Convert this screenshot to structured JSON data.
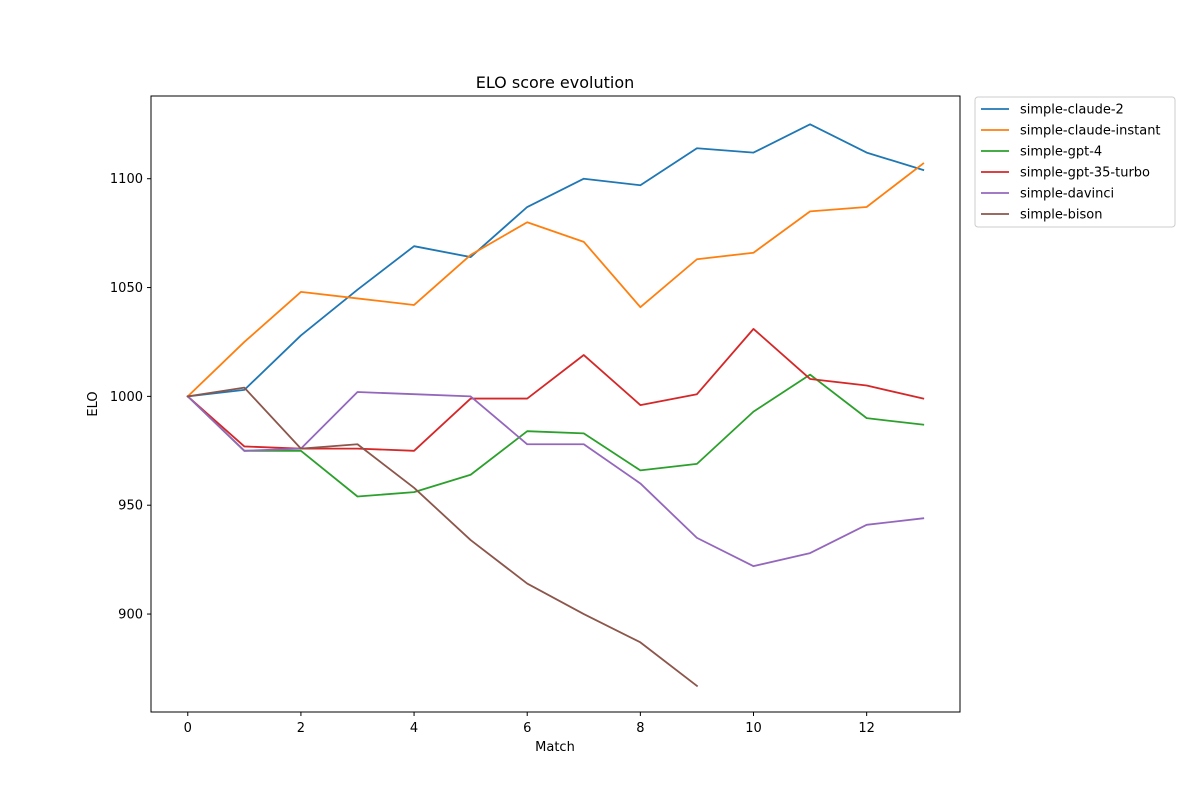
{
  "chart_data": {
    "type": "line",
    "title": "ELO score evolution",
    "xlabel": "Match",
    "ylabel": "ELO",
    "xlim": [
      -0.65,
      13.65
    ],
    "ylim": [
      855,
      1138
    ],
    "xticks": [
      0,
      2,
      4,
      6,
      8,
      10,
      12
    ],
    "yticks": [
      900,
      950,
      1000,
      1050,
      1100
    ],
    "grid": false,
    "legend_position": "outside-top-right",
    "series": [
      {
        "name": "simple-claude-2",
        "color": "#1f77b4",
        "x": [
          0,
          1,
          2,
          3,
          4,
          5,
          6,
          7,
          8,
          9,
          10,
          11,
          12,
          13
        ],
        "y": [
          1000,
          1003,
          1028,
          1049,
          1069,
          1064,
          1087,
          1100,
          1097,
          1114,
          1112,
          1125,
          1112,
          1104
        ]
      },
      {
        "name": "simple-claude-instant",
        "color": "#ff7f0e",
        "x": [
          0,
          1,
          2,
          3,
          4,
          5,
          6,
          7,
          8,
          9,
          10,
          11,
          12,
          13
        ],
        "y": [
          1000,
          1025,
          1048,
          1045,
          1042,
          1065,
          1080,
          1071,
          1041,
          1063,
          1066,
          1085,
          1087,
          1107
        ]
      },
      {
        "name": "simple-gpt-4",
        "color": "#2ca02c",
        "x": [
          0,
          1,
          2,
          3,
          4,
          5,
          6,
          7,
          8,
          9,
          10,
          11,
          12,
          13
        ],
        "y": [
          1000,
          975,
          975,
          954,
          956,
          964,
          984,
          983,
          966,
          969,
          993,
          1010,
          990,
          987
        ]
      },
      {
        "name": "simple-gpt-35-turbo",
        "color": "#d62728",
        "x": [
          0,
          1,
          2,
          3,
          4,
          5,
          6,
          7,
          8,
          9,
          10,
          11,
          12,
          13
        ],
        "y": [
          1000,
          977,
          976,
          976,
          975,
          999,
          999,
          1019,
          996,
          1001,
          1031,
          1008,
          1005,
          999
        ]
      },
      {
        "name": "simple-davinci",
        "color": "#9467bd",
        "x": [
          0,
          1,
          2,
          3,
          4,
          5,
          6,
          7,
          8,
          9,
          10,
          11,
          12,
          13
        ],
        "y": [
          1000,
          975,
          976,
          1002,
          1001,
          1000,
          978,
          978,
          960,
          935,
          922,
          928,
          941,
          944
        ]
      },
      {
        "name": "simple-bison",
        "color": "#8c564b",
        "x": [
          0,
          1,
          2,
          3,
          4,
          5,
          6,
          7,
          8,
          9
        ],
        "y": [
          1000,
          1004,
          976,
          978,
          958,
          934,
          914,
          900,
          887,
          867
        ]
      }
    ]
  }
}
